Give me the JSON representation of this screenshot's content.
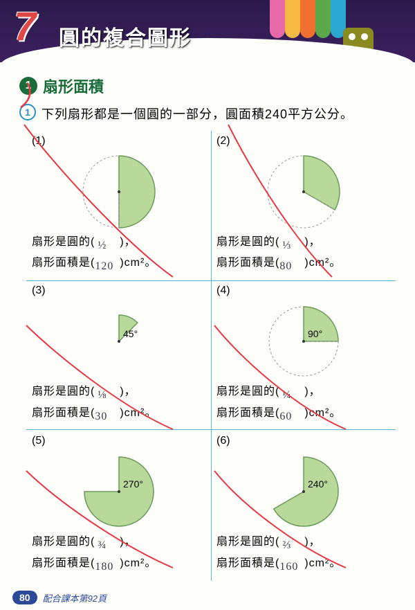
{
  "header": {
    "chapter_number": "7",
    "chapter_title": "圓的複合圖形",
    "stripe_colors": [
      "#e86aa8",
      "#f5b942",
      "#f07030",
      "#5aa84a",
      "#2aa8d0"
    ],
    "background_color": "#2a1a4a",
    "title_color": "#ffffff",
    "number_color": "#e04848"
  },
  "section": {
    "badge": "1",
    "title": "扇形面積",
    "badge_bg": "#1a6b3a",
    "title_color": "#1a6b3a"
  },
  "question": {
    "badge": "1",
    "text": "下列扇形都是一個圓的一部分，圓面積240平方公分。",
    "badge_color": "#2a8fc4"
  },
  "grid_line_color": "#5ab5d4",
  "sector_fill": "#b8d99a",
  "sector_stroke": "#6a9a5a",
  "dash_color": "#999999",
  "problems": [
    {
      "num": "(1)",
      "angle_deg": 180,
      "angle_label": "",
      "line1_prefix": "扇形是圓的(",
      "line1_ans": "½",
      "line1_suffix": ")，",
      "line2_prefix": "扇形面積是(",
      "line2_ans": "120",
      "line2_suffix": ")cm²。"
    },
    {
      "num": "(2)",
      "angle_deg": 120,
      "angle_label": "",
      "line1_prefix": "扇形是圓的(",
      "line1_ans": "⅓",
      "line1_suffix": ")，",
      "line2_prefix": "扇形面積是(",
      "line2_ans": "80",
      "line2_suffix": ")cm²。"
    },
    {
      "num": "(3)",
      "angle_deg": 45,
      "angle_label": "45°",
      "line1_prefix": "扇形是圓的(",
      "line1_ans": "⅛",
      "line1_suffix": ")，",
      "line2_prefix": "扇形面積是(",
      "line2_ans": "30",
      "line2_suffix": ")cm²。"
    },
    {
      "num": "(4)",
      "angle_deg": 90,
      "angle_label": "90°",
      "line1_prefix": "扇形是圓的(",
      "line1_ans": "¼",
      "line1_suffix": ")，",
      "line2_prefix": "扇形面積是(",
      "line2_ans": "60",
      "line2_suffix": ")cm²。"
    },
    {
      "num": "(5)",
      "angle_deg": 270,
      "angle_label": "270°",
      "line1_prefix": "扇形是圓的(",
      "line1_ans": "¾",
      "line1_suffix": ")，",
      "line2_prefix": "扇形面積是(",
      "line2_ans": "180",
      "line2_suffix": ")cm²。"
    },
    {
      "num": "(6)",
      "angle_deg": 240,
      "angle_label": "240°",
      "line1_prefix": "扇形是圓的(",
      "line1_ans": "⅔",
      "line1_suffix": ")，",
      "line2_prefix": "扇形面積是(",
      "line2_ans": "160",
      "line2_suffix": ")cm²。"
    }
  ],
  "footer": {
    "page": "80",
    "text": "配合課本第92頁",
    "badge_bg": "#2d4a9a"
  },
  "red_mark_color": "#e63946"
}
